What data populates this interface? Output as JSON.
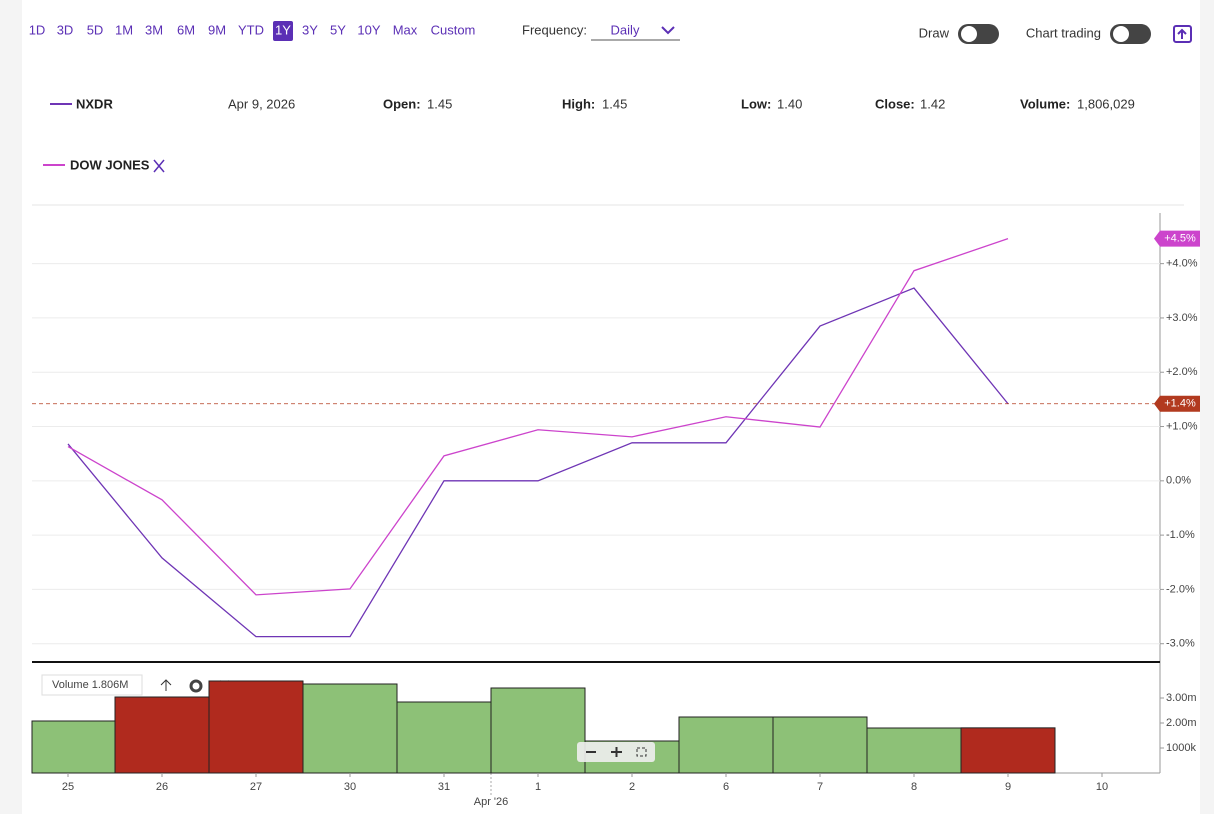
{
  "toolbar": {
    "ranges": [
      "1D",
      "3D",
      "5D",
      "1M",
      "3M",
      "6M",
      "9M",
      "YTD",
      "1Y",
      "3Y",
      "5Y",
      "10Y",
      "Max",
      "Custom"
    ],
    "selected": "1Y",
    "frequency_label": "Frequency:",
    "frequency": "Daily",
    "draw": "Draw",
    "chart_trading": "Chart trading"
  },
  "quote": {
    "symbol": "NXDR",
    "date": "Apr 9, 2026",
    "open_label": "Open:",
    "open": "1.45",
    "high_label": "High:",
    "high": "1.45",
    "low_label": "Low:",
    "low": "1.40",
    "close_label": "Close:",
    "close": "1.42",
    "volume_label": "Volume:",
    "volume": "1,806,029"
  },
  "chart_data": {
    "type": "line",
    "categories": [
      "25",
      "26",
      "27",
      "30",
      "31",
      "1",
      "2",
      "6",
      "7",
      "8",
      "9",
      "10"
    ],
    "x_annotation": "Apr '26",
    "series": [
      {
        "name": "NXDR",
        "color": "#6f35b5",
        "values": [
          0.68,
          -1.42,
          -2.87,
          -2.87,
          0.0,
          0.0,
          0.7,
          0.7,
          2.85,
          3.55,
          1.42,
          null
        ],
        "end_label": "+1.4%",
        "end_color": "#b23a1f"
      },
      {
        "name": "DOW JONES",
        "color": "#cc44cc",
        "values": [
          0.63,
          -0.35,
          -2.1,
          -1.99,
          0.46,
          0.94,
          0.81,
          1.18,
          0.99,
          3.87,
          4.46,
          null
        ],
        "end_label": "+4.5%",
        "end_color": "#cc44cc"
      }
    ],
    "ylim": [
      -3.3,
      5.08
    ],
    "yticks": [
      {
        "value": -3,
        "label": "-3.0%"
      },
      {
        "value": -2,
        "label": "-2.0%"
      },
      {
        "value": -1,
        "label": "-1.0%"
      },
      {
        "value": 0,
        "label": "0.0%"
      },
      {
        "value": 1,
        "label": "+1.0%"
      },
      {
        "value": 2,
        "label": "+2.0%"
      },
      {
        "value": 3,
        "label": "+3.0%"
      },
      {
        "value": 4,
        "label": "+4.0%"
      }
    ],
    "grid": true,
    "volume": {
      "type": "bar",
      "label": "Volume 1.806M",
      "values": [
        2080000,
        3040000,
        3680000,
        3560000,
        2840000,
        3400000,
        1280000,
        2240000,
        2240000,
        1800000,
        1806029,
        null
      ],
      "colors": [
        "#8dc177",
        "#b02a1e",
        "#b02a1e",
        "#8dc177",
        "#8dc177",
        "#8dc177",
        "#8dc177",
        "#8dc177",
        "#8dc177",
        "#8dc177",
        "#b02a1e",
        null
      ],
      "ylim": [
        0,
        4440000
      ],
      "yticks": [
        {
          "value": 1000000,
          "label": "1000k"
        },
        {
          "value": 2000000,
          "label": "2.00m"
        },
        {
          "value": 3000000,
          "label": "3.00m"
        }
      ]
    }
  }
}
